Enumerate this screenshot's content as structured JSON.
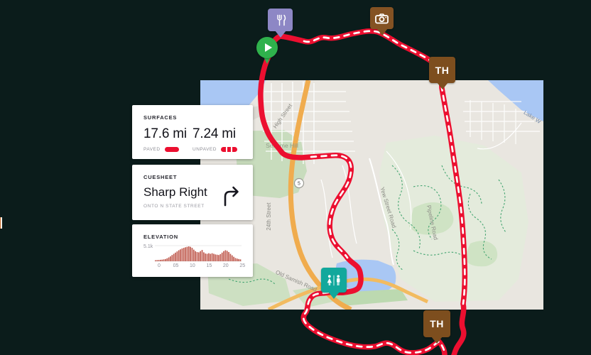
{
  "app_context": "route-planner-map-view",
  "colors": {
    "background": "#0b1c1b",
    "accent_red": "#ec0f30",
    "marker_restaurant": "#8d87c5",
    "marker_photo": "#845223",
    "marker_trailhead": "#7d4e1e",
    "marker_start": "#2fb14c",
    "marker_restroom": "#12a89c",
    "card_bg": "#ffffff"
  },
  "route": {
    "color": "#ec0f30",
    "dash_color": "#ffffff",
    "paved_style": "solid",
    "unpaved_style": "dashed"
  },
  "cards": {
    "surfaces": {
      "title": "SURFACES",
      "paved_value": "17.6 mi",
      "paved_label": "PAVED",
      "unpaved_value": "7.24 mi",
      "unpaved_label": "UNPAVED"
    },
    "cuesheet": {
      "title": "CUESHEET",
      "instruction": "Sharp Right",
      "detail": "ONTO N STATE STREET"
    },
    "elevation": {
      "title": "ELEVATION"
    }
  },
  "chart_data": {
    "type": "area",
    "title": "ELEVATION",
    "y_max_label": "5.1k",
    "x_ticks": [
      "0",
      "05",
      "10",
      "15",
      "20",
      "25"
    ],
    "x_max_miles": 26,
    "bar_color": "#c05b4f",
    "profile": [
      0.07,
      0.08,
      0.09,
      0.1,
      0.11,
      0.13,
      0.15,
      0.2,
      0.26,
      0.33,
      0.42,
      0.5,
      0.58,
      0.66,
      0.74,
      0.8,
      0.86,
      0.9,
      0.94,
      0.97,
      1.0,
      0.97,
      0.9,
      0.78,
      0.68,
      0.62,
      0.6,
      0.68,
      0.76,
      0.6,
      0.52,
      0.5,
      0.54,
      0.5,
      0.54,
      0.5,
      0.46,
      0.44,
      0.42,
      0.48,
      0.58,
      0.68,
      0.74,
      0.7,
      0.62,
      0.5,
      0.4,
      0.3,
      0.22,
      0.18,
      0.15,
      0.13
    ]
  },
  "map": {
    "labels": {
      "high_street": "High Street",
      "sehome_hill": "Sehome Hill",
      "street_24th": "24th Street",
      "highway_shield": "5",
      "yew_street": "Yew Street Road",
      "pipeline_road": "Pipeline Road",
      "lake_w": "Lake W",
      "old_samish": "Old Samish Road"
    },
    "markers": [
      {
        "id": "restaurant",
        "icon": "fork-knife"
      },
      {
        "id": "photo",
        "icon": "camera"
      },
      {
        "id": "trailhead-north",
        "label": "TH"
      },
      {
        "id": "start",
        "icon": "play"
      },
      {
        "id": "restroom",
        "icon": "restroom"
      },
      {
        "id": "trailhead-south",
        "label": "TH"
      }
    ]
  }
}
